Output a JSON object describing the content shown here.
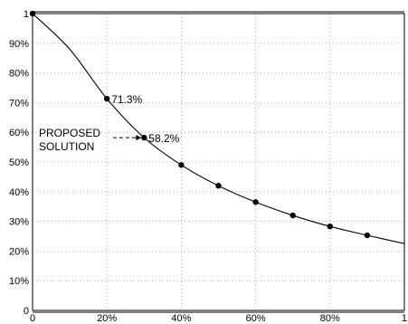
{
  "chart_data": {
    "type": "line",
    "title": "",
    "xlabel": "",
    "ylabel": "",
    "xlim": [
      0,
      1
    ],
    "ylim": [
      0,
      1
    ],
    "grid": true,
    "x_ticks": [
      {
        "value": 0,
        "label": "0"
      },
      {
        "value": 0.2,
        "label": "20%"
      },
      {
        "value": 0.4,
        "label": "40%"
      },
      {
        "value": 0.6,
        "label": "60%"
      },
      {
        "value": 0.8,
        "label": "80%"
      },
      {
        "value": 1,
        "label": "1"
      }
    ],
    "y_ticks": [
      {
        "value": 0,
        "label": "0"
      },
      {
        "value": 0.1,
        "label": "10%"
      },
      {
        "value": 0.2,
        "label": "20%"
      },
      {
        "value": 0.3,
        "label": "30%"
      },
      {
        "value": 0.4,
        "label": "40%"
      },
      {
        "value": 0.5,
        "label": "50%"
      },
      {
        "value": 0.6,
        "label": "60%"
      },
      {
        "value": 0.7,
        "label": "70%"
      },
      {
        "value": 0.8,
        "label": "80%"
      },
      {
        "value": 0.9,
        "label": "90%"
      },
      {
        "value": 1,
        "label": "1"
      }
    ],
    "series": [
      {
        "x": [
          0,
          0.1,
          0.2,
          0.3,
          0.4,
          0.5,
          0.6,
          0.7,
          0.8,
          0.9,
          1.0
        ],
        "y": [
          1.0,
          0.88,
          0.713,
          0.582,
          0.49,
          0.42,
          0.365,
          0.32,
          0.283,
          0.253,
          0.225
        ],
        "markers": [
          0,
          2,
          3,
          4,
          5,
          6,
          7,
          8,
          9
        ]
      }
    ],
    "data_labels": [
      {
        "x": 0.2,
        "y": 0.713,
        "text": "71.3%"
      },
      {
        "x": 0.3,
        "y": 0.582,
        "text": "58.2%"
      }
    ],
    "annotation": {
      "lines": [
        "PROPOSED",
        "SOLUTION"
      ],
      "target_x": 0.3,
      "target_y": 0.582
    }
  }
}
